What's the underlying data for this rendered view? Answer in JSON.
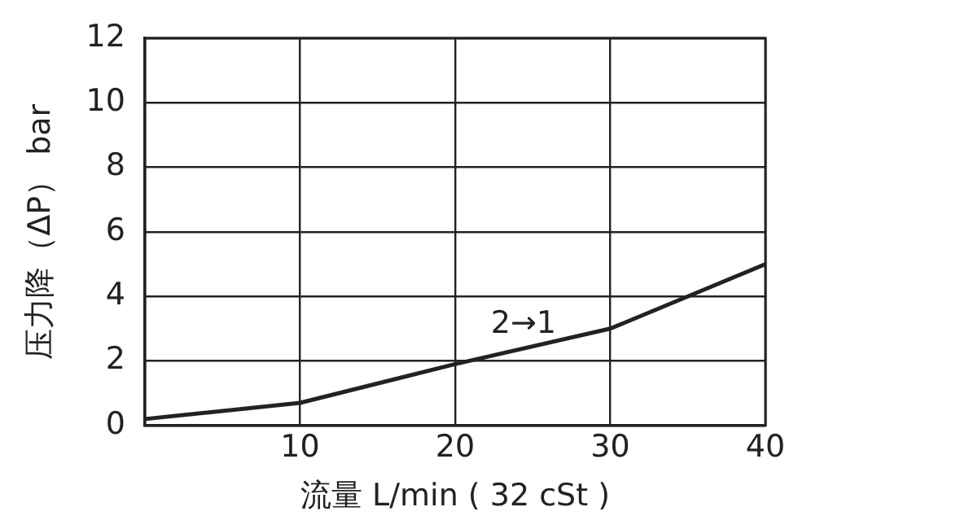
{
  "chart_data": {
    "type": "line",
    "xlabel": "流量 L/min ( 32 cSt )",
    "ylabel": "压力降（ΔP） bar",
    "x": [
      0,
      10,
      20,
      30,
      40
    ],
    "series": [
      {
        "color": "#222222",
        "values": [
          0.2,
          0.7,
          1.9,
          3.0,
          5.0
        ]
      }
    ],
    "xlim": [
      0,
      40
    ],
    "xticks": [
      {
        "value": 0,
        "label": null
      },
      10,
      20,
      30,
      40
    ],
    "ylim": [
      0,
      12
    ],
    "yticks": [
      0,
      2,
      4,
      6,
      8,
      10,
      12
    ],
    "grid": true,
    "legend": false,
    "marker": "none",
    "line_style": "solid",
    "annotations": [
      "2→1"
    ]
  }
}
